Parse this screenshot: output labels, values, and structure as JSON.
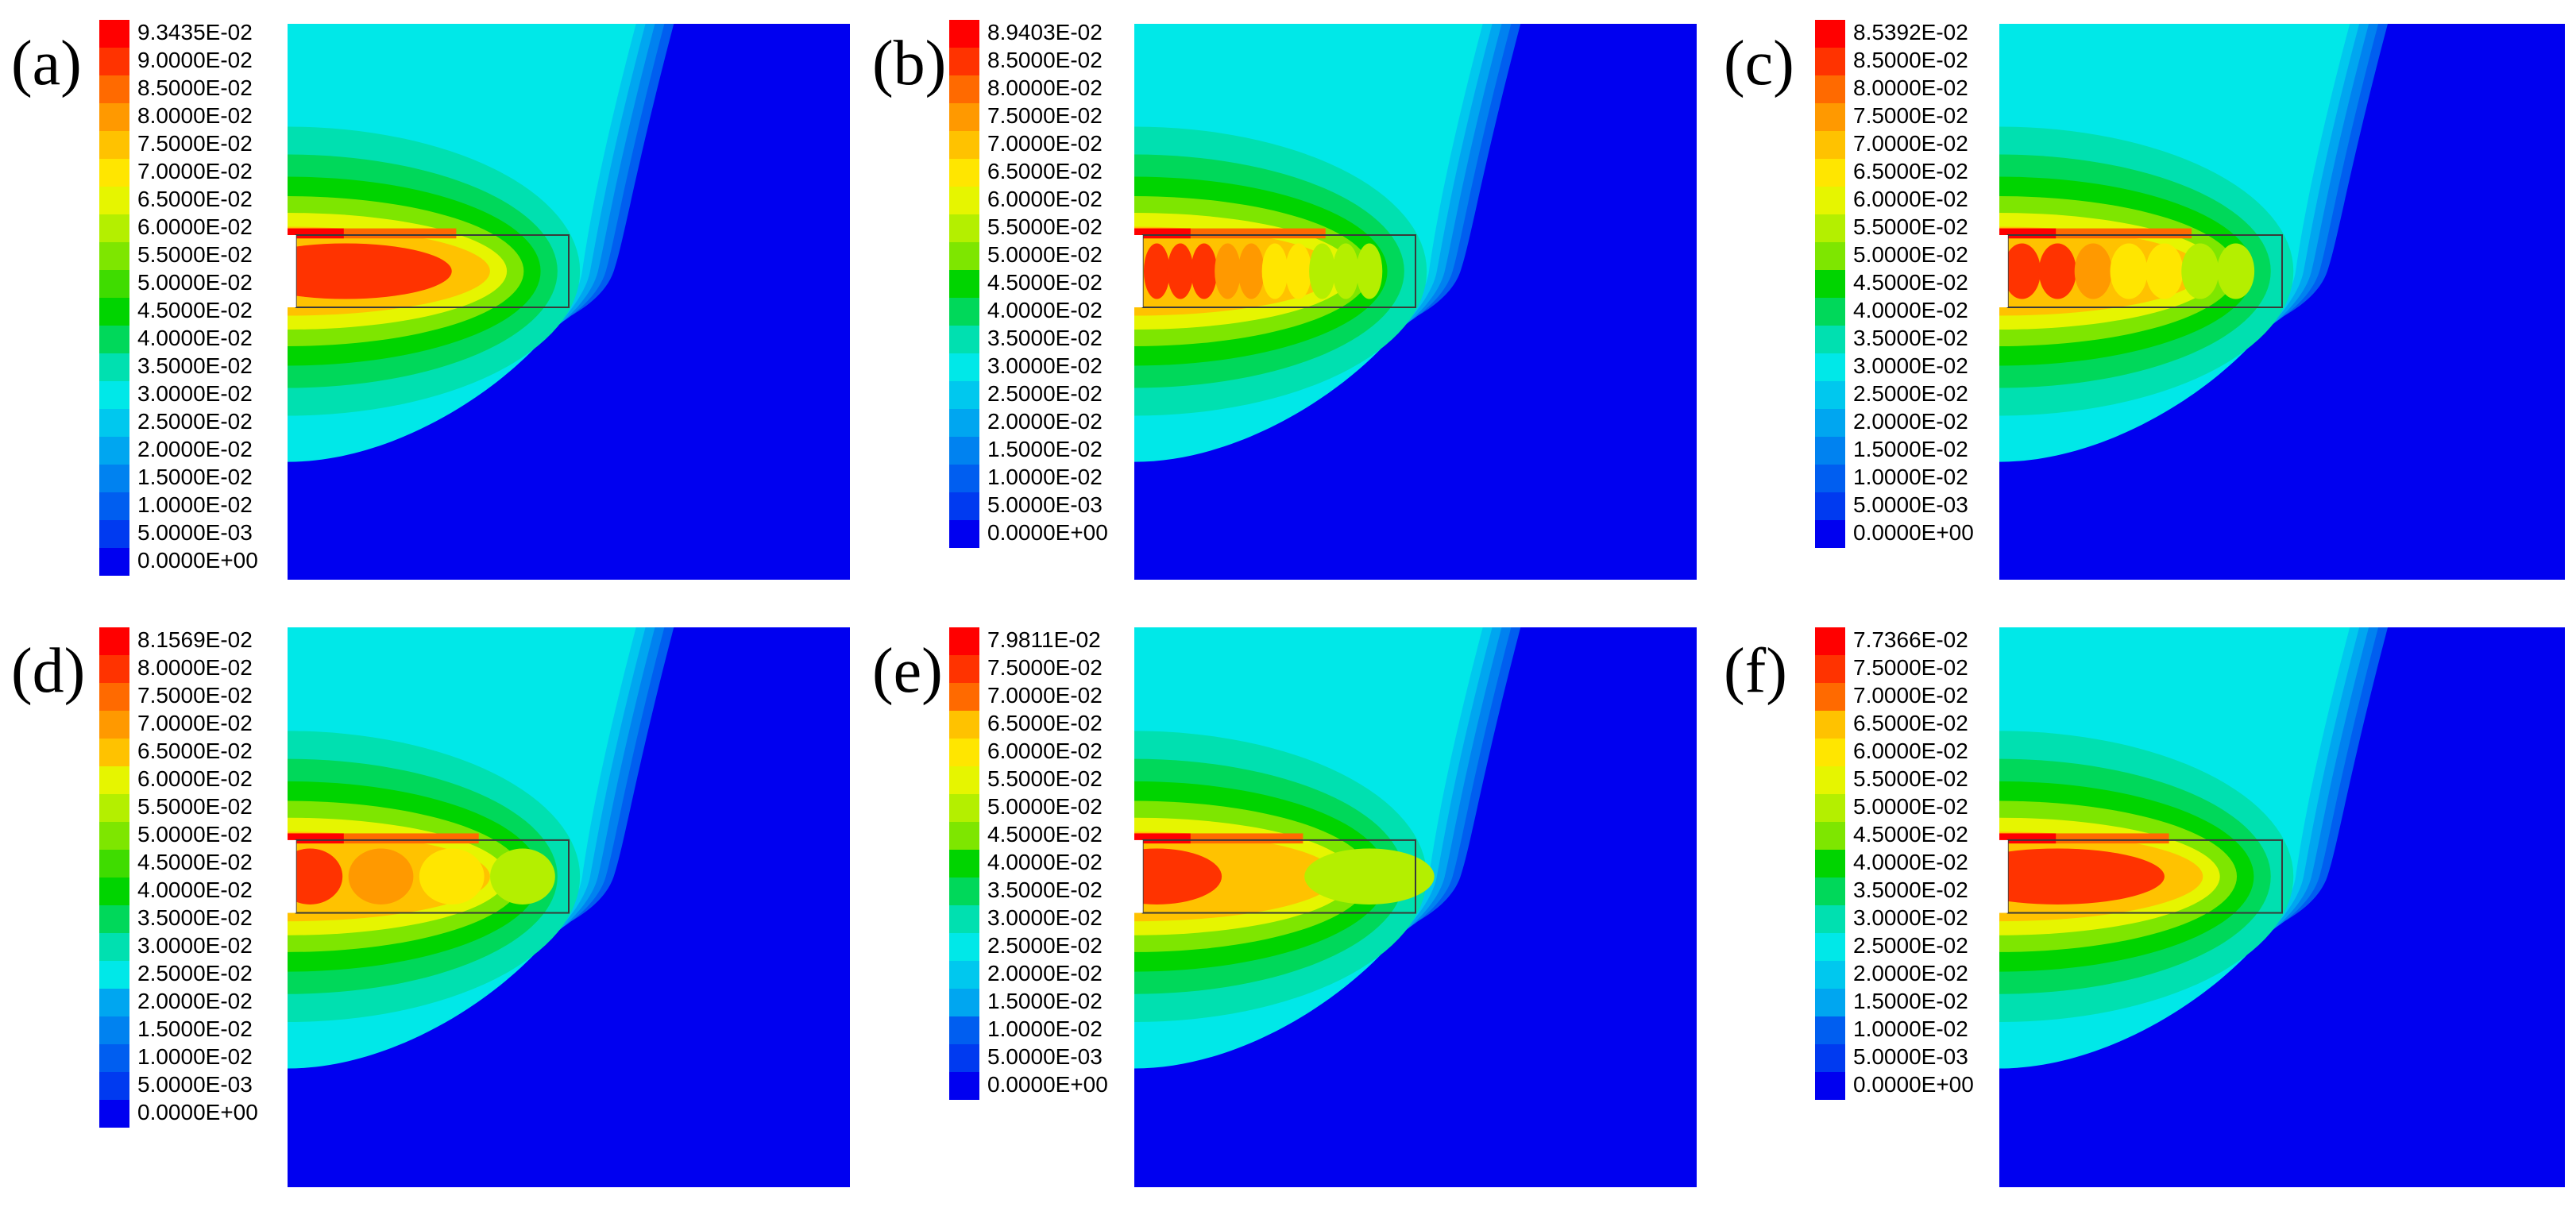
{
  "panels": [
    {
      "label": "(a)",
      "legend": [
        "9.3435E-02",
        "9.0000E-02",
        "8.5000E-02",
        "8.0000E-02",
        "7.5000E-02",
        "7.0000E-02",
        "6.5000E-02",
        "6.0000E-02",
        "5.5000E-02",
        "5.0000E-02",
        "4.5000E-02",
        "4.0000E-02",
        "3.5000E-02",
        "3.0000E-02",
        "2.5000E-02",
        "2.0000E-02",
        "1.5000E-02",
        "1.0000E-02",
        "5.0000E-03",
        "0.0000E+00"
      ],
      "hotspots": 1
    },
    {
      "label": "(b)",
      "legend": [
        "8.9403E-02",
        "8.5000E-02",
        "8.0000E-02",
        "7.5000E-02",
        "7.0000E-02",
        "6.5000E-02",
        "6.0000E-02",
        "5.5000E-02",
        "5.0000E-02",
        "4.5000E-02",
        "4.0000E-02",
        "3.5000E-02",
        "3.0000E-02",
        "2.5000E-02",
        "2.0000E-02",
        "1.5000E-02",
        "1.0000E-02",
        "5.0000E-03",
        "0.0000E+00"
      ],
      "hotspots": 10
    },
    {
      "label": "(c)",
      "legend": [
        "8.5392E-02",
        "8.5000E-02",
        "8.0000E-02",
        "7.5000E-02",
        "7.0000E-02",
        "6.5000E-02",
        "6.0000E-02",
        "5.5000E-02",
        "5.0000E-02",
        "4.5000E-02",
        "4.0000E-02",
        "3.5000E-02",
        "3.0000E-02",
        "2.5000E-02",
        "2.0000E-02",
        "1.5000E-02",
        "1.0000E-02",
        "5.0000E-03",
        "0.0000E+00"
      ],
      "hotspots": 7
    },
    {
      "label": "(d)",
      "legend": [
        "8.1569E-02",
        "8.0000E-02",
        "7.5000E-02",
        "7.0000E-02",
        "6.5000E-02",
        "6.0000E-02",
        "5.5000E-02",
        "5.0000E-02",
        "4.5000E-02",
        "4.0000E-02",
        "3.5000E-02",
        "3.0000E-02",
        "2.5000E-02",
        "2.0000E-02",
        "1.5000E-02",
        "1.0000E-02",
        "5.0000E-03",
        "0.0000E+00"
      ],
      "hotspots": 4
    },
    {
      "label": "(e)",
      "legend": [
        "7.9811E-02",
        "7.5000E-02",
        "7.0000E-02",
        "6.5000E-02",
        "6.0000E-02",
        "5.5000E-02",
        "5.0000E-02",
        "4.5000E-02",
        "4.0000E-02",
        "3.5000E-02",
        "3.0000E-02",
        "2.5000E-02",
        "2.0000E-02",
        "1.5000E-02",
        "1.0000E-02",
        "5.0000E-03",
        "0.0000E+00"
      ],
      "hotspots": 2
    },
    {
      "label": "(f)",
      "legend": [
        "7.7366E-02",
        "7.5000E-02",
        "7.0000E-02",
        "6.5000E-02",
        "6.0000E-02",
        "5.5000E-02",
        "5.0000E-02",
        "4.5000E-02",
        "4.0000E-02",
        "3.5000E-02",
        "3.0000E-02",
        "2.5000E-02",
        "2.0000E-02",
        "1.5000E-02",
        "1.0000E-02",
        "5.0000E-03",
        "0.0000E+00"
      ],
      "hotspots": 1
    }
  ],
  "colors": {
    "contour_scale": [
      "#ff0000",
      "#ff3300",
      "#ff6a00",
      "#ff9900",
      "#ffc200",
      "#ffe600",
      "#e6f500",
      "#b4ef00",
      "#7ee600",
      "#3fdc00",
      "#00d400",
      "#00d85a",
      "#00e0b0",
      "#00e8e8",
      "#00c8ee",
      "#00a6f0",
      "#0082f0",
      "#005ef0",
      "#003af0",
      "#0000f0"
    ],
    "field_background": "#0000f0",
    "insert_outline": "#3a3a3a"
  }
}
